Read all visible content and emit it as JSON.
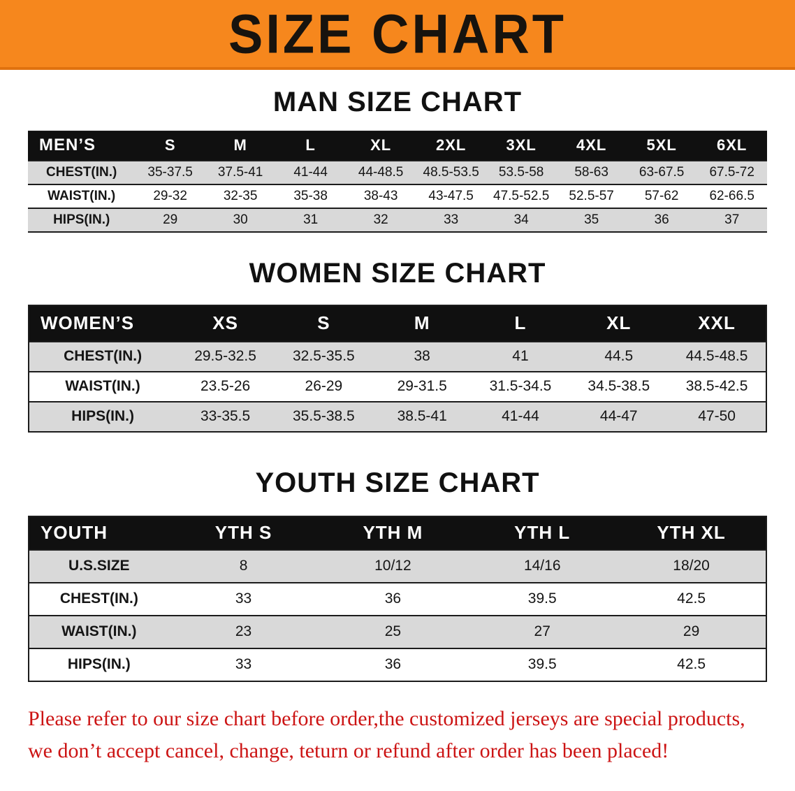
{
  "banner": {
    "title": "SIZE CHART",
    "bg_color": "#f6871d",
    "text_color": "#17130e"
  },
  "chart_data": [
    {
      "type": "table",
      "title": "MAN SIZE CHART",
      "columns": [
        "MEN’S",
        "S",
        "M",
        "L",
        "XL",
        "2XL",
        "3XL",
        "4XL",
        "5XL",
        "6XL"
      ],
      "rows": [
        [
          "CHEST(IN.)",
          "35-37.5",
          "37.5-41",
          "41-44",
          "44-48.5",
          "48.5-53.5",
          "53.5-58",
          "58-63",
          "63-67.5",
          "67.5-72"
        ],
        [
          "WAIST(IN.)",
          "29-32",
          "32-35",
          "35-38",
          "38-43",
          "43-47.5",
          "47.5-52.5",
          "52.5-57",
          "57-62",
          "62-66.5"
        ],
        [
          "HIPS(IN.)",
          "29",
          "30",
          "31",
          "32",
          "33",
          "34",
          "35",
          "36",
          "37"
        ]
      ]
    },
    {
      "type": "table",
      "title": "WOMEN SIZE CHART",
      "columns": [
        "WOMEN’S",
        "XS",
        "S",
        "M",
        "L",
        "XL",
        "XXL"
      ],
      "rows": [
        [
          "CHEST(IN.)",
          "29.5-32.5",
          "32.5-35.5",
          "38",
          "41",
          "44.5",
          "44.5-48.5"
        ],
        [
          "WAIST(IN.)",
          "23.5-26",
          "26-29",
          "29-31.5",
          "31.5-34.5",
          "34.5-38.5",
          "38.5-42.5"
        ],
        [
          "HIPS(IN.)",
          "33-35.5",
          "35.5-38.5",
          "38.5-41",
          "41-44",
          "44-47",
          "47-50"
        ]
      ]
    },
    {
      "type": "table",
      "title": "YOUTH SIZE CHART",
      "columns": [
        "YOUTH",
        "YTH S",
        "YTH M",
        "YTH L",
        "YTH XL"
      ],
      "rows": [
        [
          "U.S.SIZE",
          "8",
          "10/12",
          "14/16",
          "18/20"
        ],
        [
          "CHEST(IN.)",
          "33",
          "36",
          "39.5",
          "42.5"
        ],
        [
          "WAIST(IN.)",
          "23",
          "25",
          "27",
          "29"
        ],
        [
          "HIPS(IN.)",
          "33",
          "36",
          "39.5",
          "42.5"
        ]
      ]
    }
  ],
  "footer": {
    "line1": "Please refer to our size chart before order,the customized jerseys are special products,",
    "line2": "we don’t accept cancel, change, teturn or refund after order has been placed!",
    "color": "#cc1414"
  }
}
